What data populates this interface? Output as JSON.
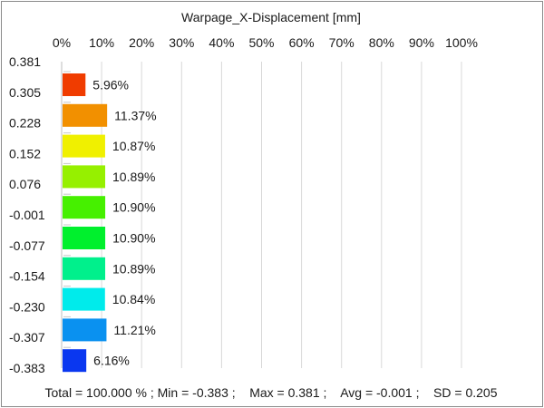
{
  "chart_data": {
    "type": "bar",
    "orientation": "horizontal",
    "title": "Warpage_X-Displacement [mm]",
    "x_ticks": [
      "0%",
      "10%",
      "20%",
      "30%",
      "40%",
      "50%",
      "60%",
      "70%",
      "80%",
      "90%",
      "100%"
    ],
    "xlim": [
      0,
      100
    ],
    "grid": true,
    "y_boundaries": [
      "0.381",
      "0.305",
      "0.228",
      "0.152",
      "0.076",
      "-0.001",
      "-0.077",
      "-0.154",
      "-0.230",
      "-0.307",
      "-0.383"
    ],
    "bars": [
      {
        "value": 5.96,
        "label": "5.96%",
        "color": "#f03c00"
      },
      {
        "value": 11.37,
        "label": "11.37%",
        "color": "#f29000"
      },
      {
        "value": 10.87,
        "label": "10.87%",
        "color": "#f0f000"
      },
      {
        "value": 10.89,
        "label": "10.89%",
        "color": "#96f000"
      },
      {
        "value": 10.9,
        "label": "10.90%",
        "color": "#46f000"
      },
      {
        "value": 10.9,
        "label": "10.90%",
        "color": "#00f02d"
      },
      {
        "value": 10.89,
        "label": "10.89%",
        "color": "#00f08c"
      },
      {
        "value": 10.84,
        "label": "10.84%",
        "color": "#00ebeb"
      },
      {
        "value": 11.21,
        "label": "11.21%",
        "color": "#0a91f0"
      },
      {
        "value": 6.16,
        "label": "6.16%",
        "color": "#0a37f0"
      }
    ],
    "summary": "Total = 100.000 % ; Min = -0.383 ;    Max = 0.381 ;    Avg = -0.001 ;    SD = 0.205"
  }
}
